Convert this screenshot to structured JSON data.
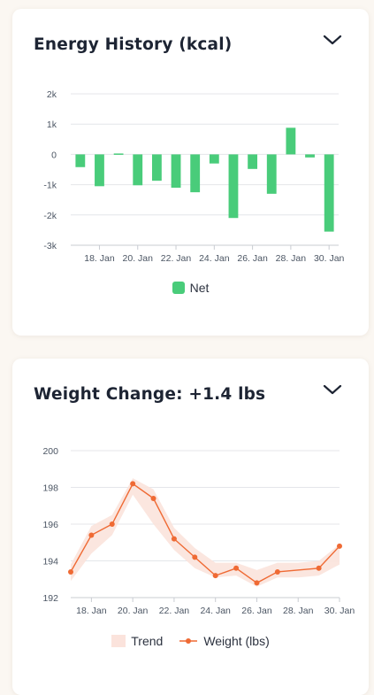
{
  "energy_card": {
    "title": "Energy History (kcal)",
    "legend": {
      "net_label": "Net"
    }
  },
  "weight_card": {
    "title": "Weight Change: +1.4 lbs",
    "legend": {
      "trend_label": "Trend",
      "weight_label": "Weight (lbs)"
    }
  },
  "colors": {
    "net_bar": "#49cc7a",
    "weight_line": "#ef6a34",
    "trend_band": "#fbe3dc"
  },
  "icons": {
    "collapse": "chevron-down-icon"
  },
  "chart_data": [
    {
      "type": "bar",
      "title": "Energy History (kcal)",
      "x_ticks": [
        "18. Jan",
        "20. Jan",
        "22. Jan",
        "24. Jan",
        "26. Jan",
        "28. Jan",
        "30. Jan"
      ],
      "y_ticks": [
        "2k",
        "1k",
        "0",
        "-1k",
        "-2k",
        "-3k"
      ],
      "ylim": [
        -3000,
        2000
      ],
      "grid": true,
      "series": [
        {
          "name": "Net",
          "x": [
            "17. Jan",
            "18. Jan",
            "19. Jan",
            "20. Jan",
            "21. Jan",
            "22. Jan",
            "23. Jan",
            "24. Jan",
            "25. Jan",
            "26. Jan",
            "27. Jan",
            "28. Jan",
            "29. Jan",
            "30. Jan"
          ],
          "values": [
            -420,
            -1050,
            30,
            -1020,
            -870,
            -1100,
            -1250,
            -300,
            -2100,
            -480,
            -1300,
            880,
            -100,
            -2550
          ]
        }
      ],
      "legend_position": "bottom"
    },
    {
      "type": "line",
      "title": "Weight Change: +1.4 lbs",
      "x_ticks": [
        "18. Jan",
        "20. Jan",
        "22. Jan",
        "24. Jan",
        "26. Jan",
        "28. Jan",
        "30. Jan"
      ],
      "y_ticks": [
        "200",
        "198",
        "196",
        "194",
        "192"
      ],
      "ylim": [
        192,
        200
      ],
      "grid": true,
      "series": [
        {
          "name": "Weight (lbs)",
          "x": [
            "17. Jan",
            "18. Jan",
            "19. Jan",
            "20. Jan",
            "21. Jan",
            "22. Jan",
            "23. Jan",
            "24. Jan",
            "25. Jan",
            "26. Jan",
            "27. Jan",
            "29. Jan",
            "30. Jan"
          ],
          "values": [
            193.4,
            195.4,
            196.0,
            198.2,
            197.4,
            195.2,
            194.2,
            193.2,
            193.6,
            192.8,
            193.4,
            193.6,
            194.8
          ]
        },
        {
          "name": "Trend",
          "type": "area-range",
          "x": [
            "17. Jan",
            "18. Jan",
            "19. Jan",
            "20. Jan",
            "21. Jan",
            "22. Jan",
            "23. Jan",
            "24. Jan",
            "25. Jan",
            "26. Jan",
            "27. Jan",
            "28. Jan",
            "29. Jan",
            "30. Jan"
          ],
          "low": [
            192.9,
            194.4,
            195.4,
            197.6,
            196.0,
            194.6,
            193.6,
            193.1,
            193.2,
            192.6,
            193.1,
            193.1,
            193.2,
            193.8
          ],
          "high": [
            193.8,
            195.9,
            196.5,
            198.5,
            197.9,
            195.8,
            194.7,
            193.9,
            193.9,
            193.5,
            193.9,
            193.9,
            194.0,
            194.9
          ]
        }
      ],
      "legend_position": "bottom"
    }
  ]
}
